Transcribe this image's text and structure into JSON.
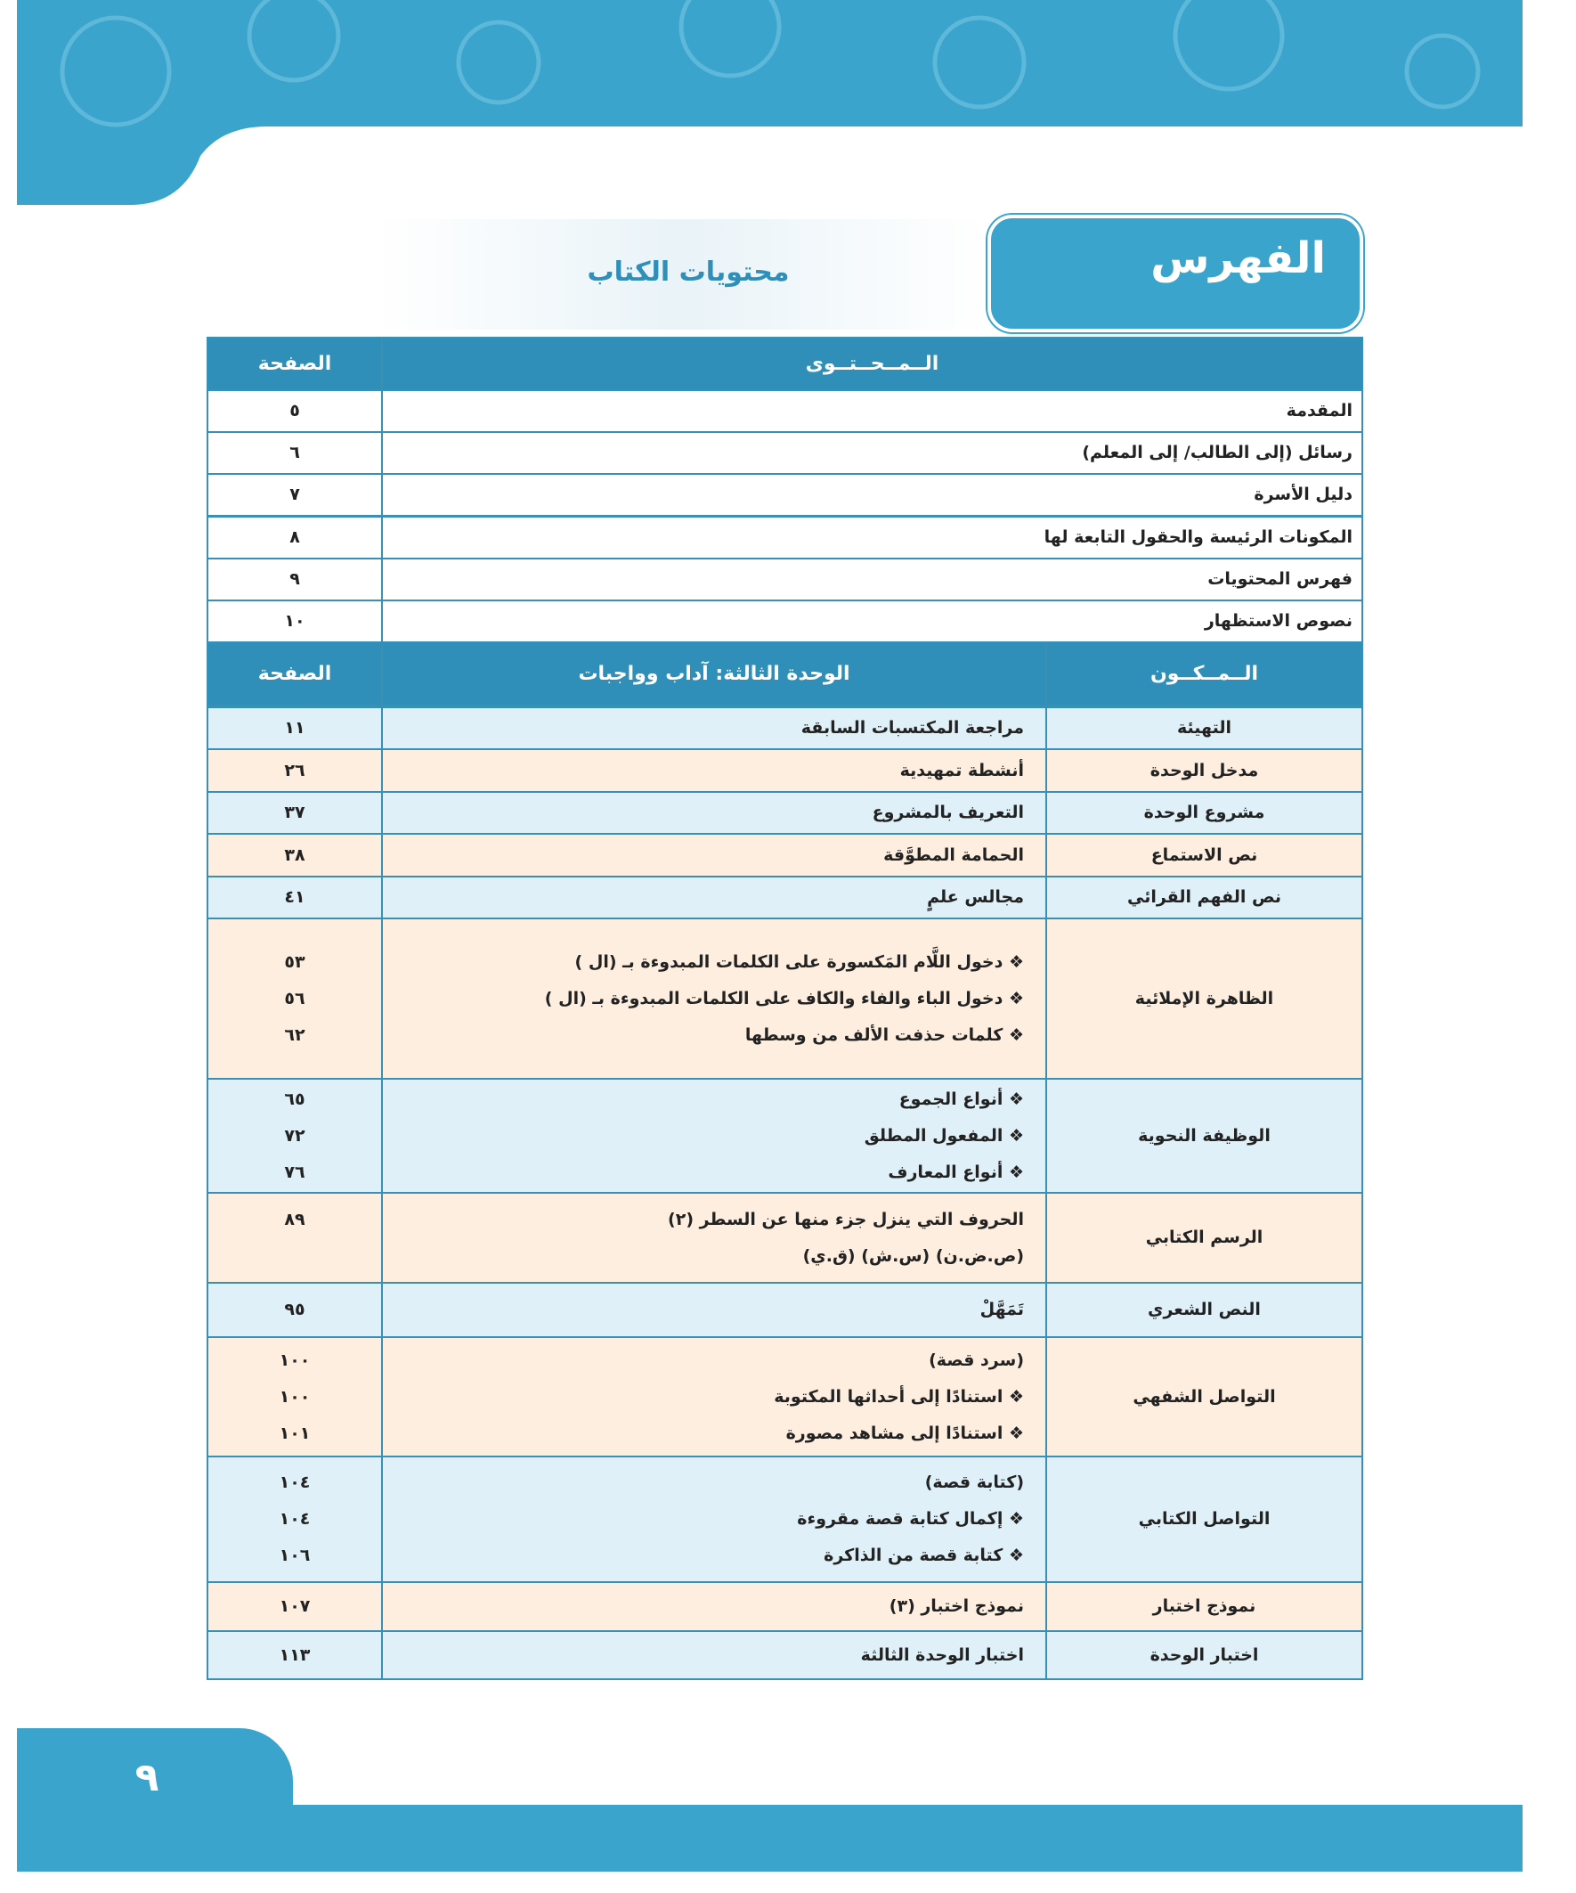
{
  "header": {
    "title": "الفهرس",
    "subtitle": "محتويات الكتاب",
    "page_number": "٩"
  },
  "intro_table": {
    "columns": [
      "الــمــحــتــوى",
      "الصفحة"
    ],
    "rows": [
      [
        "المقدمة",
        "٥"
      ],
      [
        "رسائل (إلى الطالب/ إلى المعلم)",
        "٦"
      ],
      [
        "دليل الأسرة",
        "٧"
      ],
      [
        "المكونات الرئيسة والحقول التابعة لها",
        "٨"
      ],
      [
        "فهرس المحتويات",
        "٩"
      ],
      [
        "نصوص الاستظهار",
        "١٠"
      ]
    ]
  },
  "unit_table": {
    "columns": [
      "الــمــكــون",
      "الوحدة الثالثة: آداب وواجبات",
      "الصفحة"
    ],
    "rows": [
      {
        "component": "التهيئة",
        "items": [
          {
            "text": "مراجعة المكتسبات السابقة",
            "page": "١١"
          }
        ]
      },
      {
        "component": "مدخل الوحدة",
        "items": [
          {
            "text": "أنشطة تمهيدية",
            "page": "٢٦"
          }
        ]
      },
      {
        "component": "مشروع الوحدة",
        "items": [
          {
            "text": "التعريف بالمشروع",
            "page": "٣٧"
          }
        ]
      },
      {
        "component": "نص الاستماع",
        "items": [
          {
            "text": "الحمامة المطوَّقة",
            "page": "٣٨"
          }
        ]
      },
      {
        "component": "نص الفهم القرائي",
        "items": [
          {
            "text": "مجالس علمٍ",
            "page": "٤١"
          }
        ]
      },
      {
        "component": "الظاهرة الإملائية",
        "items": [
          {
            "text": "❖ دخول اللَّام المَكسورة على الكلمات المبدوءة بـ (ال )",
            "page": "٥٣"
          },
          {
            "text": "❖ دخول الباء والفاء والكاف على الكلمات المبدوءة بـ (ال )",
            "page": "٥٦"
          },
          {
            "text": "❖ كلمات حذفت الألف من وسطها",
            "page": "٦٢"
          }
        ]
      },
      {
        "component": "الوظيفة النحوية",
        "items": [
          {
            "text": "❖ أنواع الجموع",
            "page": "٦٥"
          },
          {
            "text": "❖ المفعول المطلق",
            "page": "٧٢"
          },
          {
            "text": "❖ أنواع المعارف",
            "page": "٧٦"
          }
        ]
      },
      {
        "component": "الرسم الكتابي",
        "items": [
          {
            "text": "الحروف التي ينزل جزء منها عن السطر (٢)",
            "page": "٨٩"
          },
          {
            "text": "(ص.ض.ن) (س.ش) (ق.ي)"
          }
        ]
      },
      {
        "component": "النص الشعري",
        "items": [
          {
            "text": "تَمَهَّلْ",
            "page": "٩٥"
          }
        ]
      },
      {
        "component": "التواصل الشفهي",
        "items": [
          {
            "text": "(سرد قصة)",
            "page": "١٠٠"
          },
          {
            "text": "❖ استنادًا إلى أحداثها المكتوبة",
            "page": "١٠٠"
          },
          {
            "text": "❖ استنادًا إلى مشاهد مصورة",
            "page": "١٠١"
          }
        ]
      },
      {
        "component": "التواصل الكتابي",
        "items": [
          {
            "text": "(كتابة قصة)",
            "page": "١٠٤"
          },
          {
            "text": "❖ إكمال كتابة قصة مقروءة",
            "page": "١٠٤"
          },
          {
            "text": "❖ كتابة قصة من الذاكرة",
            "page": "١٠٦"
          }
        ]
      },
      {
        "component": "نموذج اختبار",
        "items": [
          {
            "text": "نموذج اختبار (٣)",
            "page": "١٠٧"
          }
        ]
      },
      {
        "component": "اختبار الوحدة",
        "items": [
          {
            "text": "اختبار الوحدة الثالثة",
            "page": "١١٣"
          }
        ]
      }
    ]
  }
}
